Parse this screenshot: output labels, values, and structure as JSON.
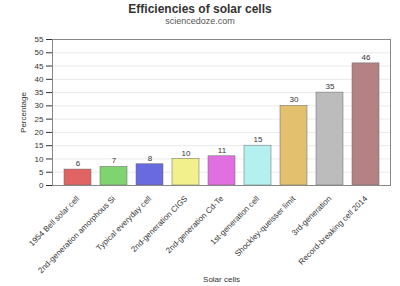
{
  "chart_data": {
    "type": "bar",
    "title": "Efficiencies of solar cells",
    "subtitle": "sciencedoze.com",
    "xlabel": "Solar cells",
    "ylabel": "Percentage",
    "categories": [
      "1954 Bell solar cell",
      "2nd-generation amorphous Si",
      "Typical everyday cell",
      "2nd-generation CIGS",
      "2nd-generation Cd-Te",
      "1st-generation cell",
      "Shockley-queisser limit",
      "3rd-generation",
      "Record-breaking cell 2014"
    ],
    "values": [
      6,
      7,
      8,
      10,
      11,
      15,
      30,
      35,
      46
    ],
    "colors": [
      "#e06464",
      "#7fd46f",
      "#6a6ae0",
      "#f2f08c",
      "#e070e0",
      "#b4f0f0",
      "#e2c06e",
      "#bcbcbc",
      "#b48282"
    ],
    "ylim": [
      0,
      55
    ],
    "yticks": [
      0,
      5,
      10,
      15,
      20,
      25,
      30,
      35,
      40,
      45,
      50,
      55
    ],
    "grid": true,
    "data_labels": true
  }
}
